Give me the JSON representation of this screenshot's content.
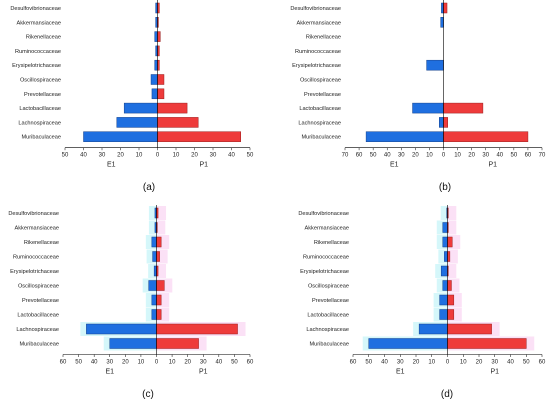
{
  "figure": {
    "categories": [
      "Desulfovibrionaceae",
      "Akkermansiaceae",
      "Rikenellaceae",
      "Ruminococcaceae",
      "Erysipelotrichaceae",
      "Oscillospiraceae",
      "Prevotellaceae",
      "Lactobacillaceae",
      "Lachnospiraceae",
      "Muribaculaceae"
    ]
  },
  "colors": {
    "left": "#1f6fe0",
    "right": "#ee3b3b",
    "left_edge": "#123f8a",
    "right_edge": "#9a1d1d",
    "axis": "#000000",
    "left_glow": "#b3f0f5",
    "right_glow": "#f8c8ef"
  },
  "chart_data": [
    {
      "type": "bar",
      "panel_label": "(a)",
      "categories": [
        "Desulfovibrionaceae",
        "Akkermansiaceae",
        "Rikenellaceae",
        "Ruminococcaceae",
        "Erysipelotrichaceae",
        "Oscillospiraceae",
        "Prevotellaceae",
        "Lactobacillaceae",
        "Lachnospiraceae",
        "Muribaculaceae"
      ],
      "series": [
        {
          "name": "E1",
          "values": [
            1,
            1,
            1.5,
            1,
            1.5,
            3.5,
            3,
            18,
            22,
            40
          ]
        },
        {
          "name": "P1",
          "values": [
            1,
            0.5,
            1.5,
            1,
            1,
            3.5,
            3.5,
            16,
            22,
            45
          ]
        }
      ],
      "xticks": [
        "50",
        "40",
        "30",
        "20",
        "10",
        "0",
        "10",
        "20",
        "30",
        "40",
        "50"
      ],
      "xlim": [
        -50,
        50
      ]
    },
    {
      "type": "bar",
      "panel_label": "(b)",
      "categories": [
        "Desulfovibrionaceae",
        "Akkermansiaceae",
        "Rikenellaceae",
        "Ruminococcaceae",
        "Erysipelotrichaceae",
        "Oscillospiraceae",
        "Prevotellaceae",
        "Lactobacillaceae",
        "Lachnospiraceae",
        "Muribaculaceae"
      ],
      "series": [
        {
          "name": "E1",
          "values": [
            1.5,
            2,
            0,
            0,
            12,
            0,
            0,
            22,
            3,
            55
          ]
        },
        {
          "name": "P1",
          "values": [
            2.5,
            0,
            0,
            0,
            0,
            0,
            0,
            28,
            3,
            60
          ]
        }
      ],
      "xticks": [
        "70",
        "60",
        "50",
        "40",
        "30",
        "20",
        "10",
        "0",
        "10",
        "20",
        "30",
        "40",
        "50",
        "60",
        "70"
      ],
      "xlim": [
        -70,
        70
      ]
    },
    {
      "type": "bar",
      "panel_label": "(c)",
      "categories": [
        "Desulfovibrionaceae",
        "Akkermansiaceae",
        "Rikenellaceae",
        "Ruminococcaceae",
        "Erysipelotrichaceae",
        "Oscillospiraceae",
        "Prevotellaceae",
        "Lactobacillaceae",
        "Lachnospiraceae",
        "Muribaculaceae"
      ],
      "series": [
        {
          "name": "E1",
          "values": [
            1,
            1,
            3,
            2.5,
            1.5,
            5,
            3,
            3,
            45,
            30
          ]
        },
        {
          "name": "P1",
          "values": [
            1,
            0.5,
            3,
            2,
            1,
            5,
            3,
            3,
            52,
            27
          ]
        }
      ],
      "xticks": [
        "60",
        "50",
        "40",
        "30",
        "20",
        "10",
        "0",
        "10",
        "20",
        "30",
        "40",
        "50",
        "60"
      ],
      "xlim": [
        -60,
        60
      ]
    },
    {
      "type": "bar",
      "panel_label": "(d)",
      "categories": [
        "Desulfovibrionaceae",
        "Akkermansiaceae",
        "Rikenellaceae",
        "Ruminococcaceae",
        "Erysipelotrichaceae",
        "Oscillospiraceae",
        "Prevotellaceae",
        "Lactobacillaceae",
        "Lachnospiraceae",
        "Muribaculaceae"
      ],
      "series": [
        {
          "name": "E1",
          "values": [
            0.5,
            3,
            3,
            2,
            4,
            3,
            5,
            5,
            18,
            50
          ]
        },
        {
          "name": "P1",
          "values": [
            0.5,
            0.5,
            3,
            1.5,
            0.5,
            2.5,
            4,
            4,
            28,
            50
          ]
        }
      ],
      "xticks": [
        "60",
        "50",
        "40",
        "30",
        "20",
        "10",
        "0",
        "10",
        "20",
        "30",
        "40",
        "50",
        "60"
      ],
      "xlim": [
        -60,
        60
      ]
    }
  ]
}
